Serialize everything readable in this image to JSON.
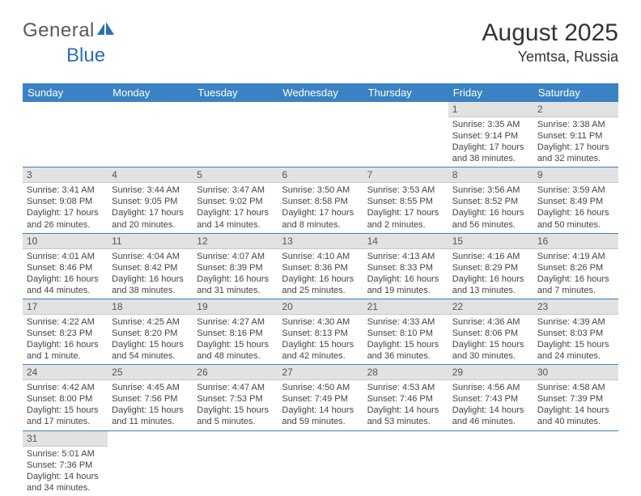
{
  "logo": {
    "general": "General",
    "blue": "Blue"
  },
  "title": {
    "month_year": "August 2025",
    "location": "Yemtsa, Russia"
  },
  "colors": {
    "header_bg": "#3a82c4",
    "header_text": "#ffffff",
    "daynum_bg": "#e2e2e2",
    "row_border": "#3a82c4",
    "logo_gray": "#5a5a5a",
    "logo_blue": "#2970b8"
  },
  "day_headers": [
    "Sunday",
    "Monday",
    "Tuesday",
    "Wednesday",
    "Thursday",
    "Friday",
    "Saturday"
  ],
  "weeks": [
    [
      {
        "n": "",
        "sunrise": "",
        "sunset": "",
        "daylight": ""
      },
      {
        "n": "",
        "sunrise": "",
        "sunset": "",
        "daylight": ""
      },
      {
        "n": "",
        "sunrise": "",
        "sunset": "",
        "daylight": ""
      },
      {
        "n": "",
        "sunrise": "",
        "sunset": "",
        "daylight": ""
      },
      {
        "n": "",
        "sunrise": "",
        "sunset": "",
        "daylight": ""
      },
      {
        "n": "1",
        "sunrise": "Sunrise: 3:35 AM",
        "sunset": "Sunset: 9:14 PM",
        "daylight": "Daylight: 17 hours and 38 minutes."
      },
      {
        "n": "2",
        "sunrise": "Sunrise: 3:38 AM",
        "sunset": "Sunset: 9:11 PM",
        "daylight": "Daylight: 17 hours and 32 minutes."
      }
    ],
    [
      {
        "n": "3",
        "sunrise": "Sunrise: 3:41 AM",
        "sunset": "Sunset: 9:08 PM",
        "daylight": "Daylight: 17 hours and 26 minutes."
      },
      {
        "n": "4",
        "sunrise": "Sunrise: 3:44 AM",
        "sunset": "Sunset: 9:05 PM",
        "daylight": "Daylight: 17 hours and 20 minutes."
      },
      {
        "n": "5",
        "sunrise": "Sunrise: 3:47 AM",
        "sunset": "Sunset: 9:02 PM",
        "daylight": "Daylight: 17 hours and 14 minutes."
      },
      {
        "n": "6",
        "sunrise": "Sunrise: 3:50 AM",
        "sunset": "Sunset: 8:58 PM",
        "daylight": "Daylight: 17 hours and 8 minutes."
      },
      {
        "n": "7",
        "sunrise": "Sunrise: 3:53 AM",
        "sunset": "Sunset: 8:55 PM",
        "daylight": "Daylight: 17 hours and 2 minutes."
      },
      {
        "n": "8",
        "sunrise": "Sunrise: 3:56 AM",
        "sunset": "Sunset: 8:52 PM",
        "daylight": "Daylight: 16 hours and 56 minutes."
      },
      {
        "n": "9",
        "sunrise": "Sunrise: 3:59 AM",
        "sunset": "Sunset: 8:49 PM",
        "daylight": "Daylight: 16 hours and 50 minutes."
      }
    ],
    [
      {
        "n": "10",
        "sunrise": "Sunrise: 4:01 AM",
        "sunset": "Sunset: 8:46 PM",
        "daylight": "Daylight: 16 hours and 44 minutes."
      },
      {
        "n": "11",
        "sunrise": "Sunrise: 4:04 AM",
        "sunset": "Sunset: 8:42 PM",
        "daylight": "Daylight: 16 hours and 38 minutes."
      },
      {
        "n": "12",
        "sunrise": "Sunrise: 4:07 AM",
        "sunset": "Sunset: 8:39 PM",
        "daylight": "Daylight: 16 hours and 31 minutes."
      },
      {
        "n": "13",
        "sunrise": "Sunrise: 4:10 AM",
        "sunset": "Sunset: 8:36 PM",
        "daylight": "Daylight: 16 hours and 25 minutes."
      },
      {
        "n": "14",
        "sunrise": "Sunrise: 4:13 AM",
        "sunset": "Sunset: 8:33 PM",
        "daylight": "Daylight: 16 hours and 19 minutes."
      },
      {
        "n": "15",
        "sunrise": "Sunrise: 4:16 AM",
        "sunset": "Sunset: 8:29 PM",
        "daylight": "Daylight: 16 hours and 13 minutes."
      },
      {
        "n": "16",
        "sunrise": "Sunrise: 4:19 AM",
        "sunset": "Sunset: 8:26 PM",
        "daylight": "Daylight: 16 hours and 7 minutes."
      }
    ],
    [
      {
        "n": "17",
        "sunrise": "Sunrise: 4:22 AM",
        "sunset": "Sunset: 8:23 PM",
        "daylight": "Daylight: 16 hours and 1 minute."
      },
      {
        "n": "18",
        "sunrise": "Sunrise: 4:25 AM",
        "sunset": "Sunset: 8:20 PM",
        "daylight": "Daylight: 15 hours and 54 minutes."
      },
      {
        "n": "19",
        "sunrise": "Sunrise: 4:27 AM",
        "sunset": "Sunset: 8:16 PM",
        "daylight": "Daylight: 15 hours and 48 minutes."
      },
      {
        "n": "20",
        "sunrise": "Sunrise: 4:30 AM",
        "sunset": "Sunset: 8:13 PM",
        "daylight": "Daylight: 15 hours and 42 minutes."
      },
      {
        "n": "21",
        "sunrise": "Sunrise: 4:33 AM",
        "sunset": "Sunset: 8:10 PM",
        "daylight": "Daylight: 15 hours and 36 minutes."
      },
      {
        "n": "22",
        "sunrise": "Sunrise: 4:36 AM",
        "sunset": "Sunset: 8:06 PM",
        "daylight": "Daylight: 15 hours and 30 minutes."
      },
      {
        "n": "23",
        "sunrise": "Sunrise: 4:39 AM",
        "sunset": "Sunset: 8:03 PM",
        "daylight": "Daylight: 15 hours and 24 minutes."
      }
    ],
    [
      {
        "n": "24",
        "sunrise": "Sunrise: 4:42 AM",
        "sunset": "Sunset: 8:00 PM",
        "daylight": "Daylight: 15 hours and 17 minutes."
      },
      {
        "n": "25",
        "sunrise": "Sunrise: 4:45 AM",
        "sunset": "Sunset: 7:56 PM",
        "daylight": "Daylight: 15 hours and 11 minutes."
      },
      {
        "n": "26",
        "sunrise": "Sunrise: 4:47 AM",
        "sunset": "Sunset: 7:53 PM",
        "daylight": "Daylight: 15 hours and 5 minutes."
      },
      {
        "n": "27",
        "sunrise": "Sunrise: 4:50 AM",
        "sunset": "Sunset: 7:49 PM",
        "daylight": "Daylight: 14 hours and 59 minutes."
      },
      {
        "n": "28",
        "sunrise": "Sunrise: 4:53 AM",
        "sunset": "Sunset: 7:46 PM",
        "daylight": "Daylight: 14 hours and 53 minutes."
      },
      {
        "n": "29",
        "sunrise": "Sunrise: 4:56 AM",
        "sunset": "Sunset: 7:43 PM",
        "daylight": "Daylight: 14 hours and 46 minutes."
      },
      {
        "n": "30",
        "sunrise": "Sunrise: 4:58 AM",
        "sunset": "Sunset: 7:39 PM",
        "daylight": "Daylight: 14 hours and 40 minutes."
      }
    ],
    [
      {
        "n": "31",
        "sunrise": "Sunrise: 5:01 AM",
        "sunset": "Sunset: 7:36 PM",
        "daylight": "Daylight: 14 hours and 34 minutes."
      },
      {
        "n": "",
        "sunrise": "",
        "sunset": "",
        "daylight": ""
      },
      {
        "n": "",
        "sunrise": "",
        "sunset": "",
        "daylight": ""
      },
      {
        "n": "",
        "sunrise": "",
        "sunset": "",
        "daylight": ""
      },
      {
        "n": "",
        "sunrise": "",
        "sunset": "",
        "daylight": ""
      },
      {
        "n": "",
        "sunrise": "",
        "sunset": "",
        "daylight": ""
      },
      {
        "n": "",
        "sunrise": "",
        "sunset": "",
        "daylight": ""
      }
    ]
  ]
}
